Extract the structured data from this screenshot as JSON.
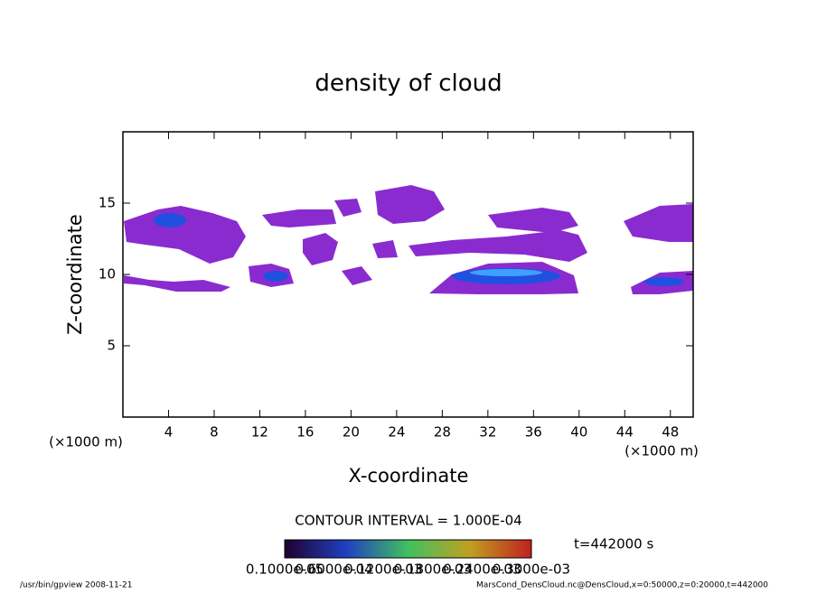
{
  "chart_data": {
    "type": "contour",
    "title": "density of cloud",
    "xlabel": "X-coordinate",
    "ylabel": "Z-coordinate",
    "xunit": "(×1000 m)",
    "yunit": "(×1000 m)",
    "xlim": [
      0,
      50
    ],
    "ylim": [
      0,
      20
    ],
    "xticks": [
      4,
      8,
      12,
      16,
      20,
      24,
      28,
      32,
      36,
      40,
      44,
      48
    ],
    "yticks": [
      5,
      10,
      15
    ],
    "contour_interval": "CONTOUR INTERVAL = 1.000E-04",
    "colorbar_labels": [
      "0.1000e-05",
      "0.6000e-04",
      "0.1200e-03",
      "0.1800e-03",
      "0.2400e-03",
      "0.3000e-03"
    ],
    "time_label": "t=442000 s",
    "footer_left": "/usr/bin/gpview  2008-11-21",
    "footer_right": "MarsCond_DensCloud.nc@DensCloud,x=0:50000,z=0:20000,t=442000"
  }
}
